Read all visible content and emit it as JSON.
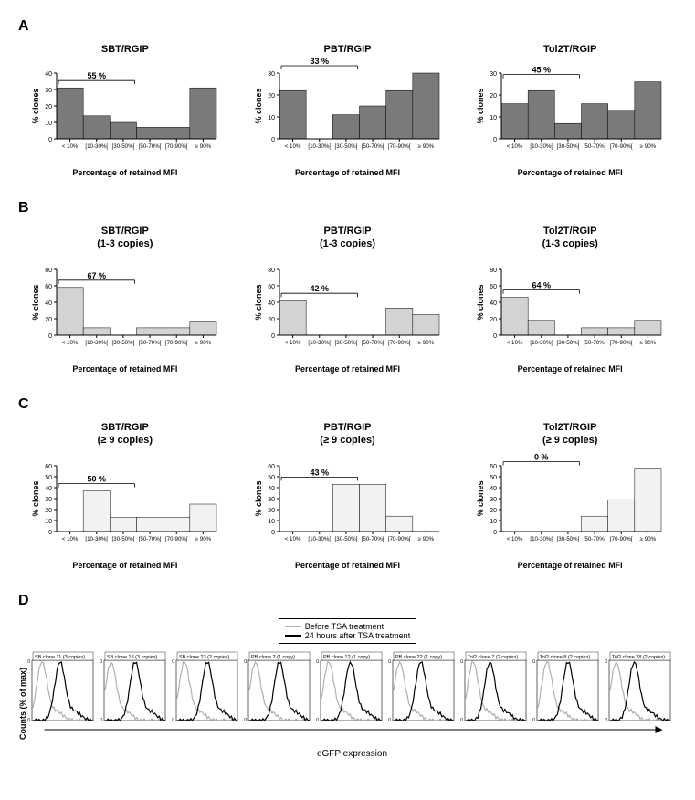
{
  "panelA": {
    "label": "A",
    "charts": [
      {
        "title": "SBT/RGIP",
        "subtitle": "",
        "bracket_label": "55 %",
        "bracket_end_index": 2,
        "values": [
          31,
          14,
          10,
          7,
          7,
          31
        ],
        "ylim": 40,
        "yticks": [
          0,
          10,
          20,
          30,
          40
        ],
        "bar_color": "#7a7a7a"
      },
      {
        "title": "PBT/RGIP",
        "subtitle": "",
        "bracket_label": "33 %",
        "bracket_end_index": 2,
        "values": [
          22,
          0,
          11,
          15,
          22,
          30
        ],
        "ylim": 30,
        "yticks": [
          0,
          10,
          20,
          30
        ],
        "bar_color": "#7a7a7a"
      },
      {
        "title": "Tol2T/RGIP",
        "subtitle": "",
        "bracket_label": "45 %",
        "bracket_end_index": 2,
        "values": [
          16,
          22,
          7,
          16,
          13,
          26
        ],
        "ylim": 30,
        "yticks": [
          0,
          10,
          20,
          30
        ],
        "bar_color": "#7a7a7a"
      }
    ],
    "xticks": [
      "< 10%",
      "[10-30%[",
      "[30-50%[",
      "[50-70%[",
      "[70-90%[",
      "≥ 90%"
    ],
    "xlabel": "Percentage of retained MFI",
    "ylabel": "% clones"
  },
  "panelB": {
    "label": "B",
    "charts": [
      {
        "title": "SBT/RGIP",
        "subtitle": "(1-3 copies)",
        "bracket_label": "67 %",
        "bracket_end_index": 2,
        "values": [
          58,
          9,
          0,
          9,
          9,
          16
        ],
        "ylim": 80,
        "yticks": [
          0,
          20,
          40,
          60,
          80
        ],
        "bar_color": "#d3d3d3"
      },
      {
        "title": "PBT/RGIP",
        "subtitle": "(1-3 copies)",
        "bracket_label": "42 %",
        "bracket_end_index": 2,
        "values": [
          42,
          0,
          0,
          0,
          33,
          25
        ],
        "ylim": 80,
        "yticks": [
          0,
          20,
          40,
          60,
          80
        ],
        "bar_color": "#d3d3d3"
      },
      {
        "title": "Tol2T/RGIP",
        "subtitle": "(1-3 copies)",
        "bracket_label": "64 %",
        "bracket_end_index": 2,
        "values": [
          46,
          18,
          0,
          9,
          9,
          18
        ],
        "ylim": 80,
        "yticks": [
          0,
          20,
          40,
          60,
          80
        ],
        "bar_color": "#d3d3d3"
      }
    ],
    "xticks": [
      "< 10%",
      "[10-30%[",
      "[30-50%[",
      "[50-70%[",
      "[70-90%[",
      "≥ 90%"
    ],
    "xlabel": "Percentage of retained MFI",
    "ylabel": "% clones"
  },
  "panelC": {
    "label": "C",
    "charts": [
      {
        "title": "SBT/RGIP",
        "subtitle": "(≥ 9 copies)",
        "bracket_label": "50 %",
        "bracket_end_index": 2,
        "values": [
          0,
          37,
          13,
          13,
          13,
          25
        ],
        "ylim": 60,
        "yticks": [
          0,
          10,
          20,
          30,
          40,
          50,
          60
        ],
        "bar_color": "#f2f2f2"
      },
      {
        "title": "PBT/RGIP",
        "subtitle": "(≥ 9 copies)",
        "bracket_label": "43 %",
        "bracket_end_index": 2,
        "values": [
          0,
          0,
          43,
          43,
          14,
          0
        ],
        "ylim": 60,
        "yticks": [
          0,
          10,
          20,
          30,
          40,
          50,
          60
        ],
        "bar_color": "#f2f2f2"
      },
      {
        "title": "Tol2T/RGIP",
        "subtitle": "(≥ 9 copies)",
        "bracket_label": "0 %",
        "bracket_end_index": 2,
        "values": [
          0,
          0,
          0,
          14,
          29,
          57
        ],
        "ylim": 60,
        "yticks": [
          0,
          10,
          20,
          30,
          40,
          50,
          60
        ],
        "bar_color": "#f2f2f2"
      }
    ],
    "xticks": [
      "< 10%",
      "[10-30%[",
      "[30-50%[",
      "[50-70%[",
      "[70-90%[",
      "≥ 90%"
    ],
    "xlabel": "Percentage of retained MFI",
    "ylabel": "% clones"
  },
  "panelD": {
    "label": "D",
    "legend": {
      "before": {
        "label": "Before TSA treatment",
        "color": "#b0b0b0"
      },
      "after": {
        "label": "24 hours after TSA treatment",
        "color": "#000000"
      }
    },
    "ylabel": "Counts (% of max)",
    "xlabel": "eGFP expression",
    "yticks": [
      0,
      100
    ],
    "histos": [
      {
        "title": "SB clone 11 (3 copies)",
        "before_shift": 0.15,
        "after_shift": 0.45
      },
      {
        "title": "SB clone 18 (3 copies)",
        "before_shift": 0.1,
        "after_shift": 0.5
      },
      {
        "title": "SB clone 23 (2 copies)",
        "before_shift": 0.12,
        "after_shift": 0.5
      },
      {
        "title": "PB clone 2 (1 copy)",
        "before_shift": 0.1,
        "after_shift": 0.5
      },
      {
        "title": "PB clone 12 (1 copy)",
        "before_shift": 0.12,
        "after_shift": 0.48
      },
      {
        "title": "PB clone 22 (1 copy)",
        "before_shift": 0.1,
        "after_shift": 0.45
      },
      {
        "title": "Tol2 clone 7 (2 copies)",
        "before_shift": 0.12,
        "after_shift": 0.4
      },
      {
        "title": "Tol2 clone 8 (2 copies)",
        "before_shift": 0.15,
        "after_shift": 0.5
      },
      {
        "title": "Tol2 clone 28 (2 copies)",
        "before_shift": 0.1,
        "after_shift": 0.4
      }
    ]
  },
  "style": {
    "axis_color": "#000000",
    "tick_fontsize": 7,
    "label_fontsize": 9,
    "title_fontsize": 11
  }
}
